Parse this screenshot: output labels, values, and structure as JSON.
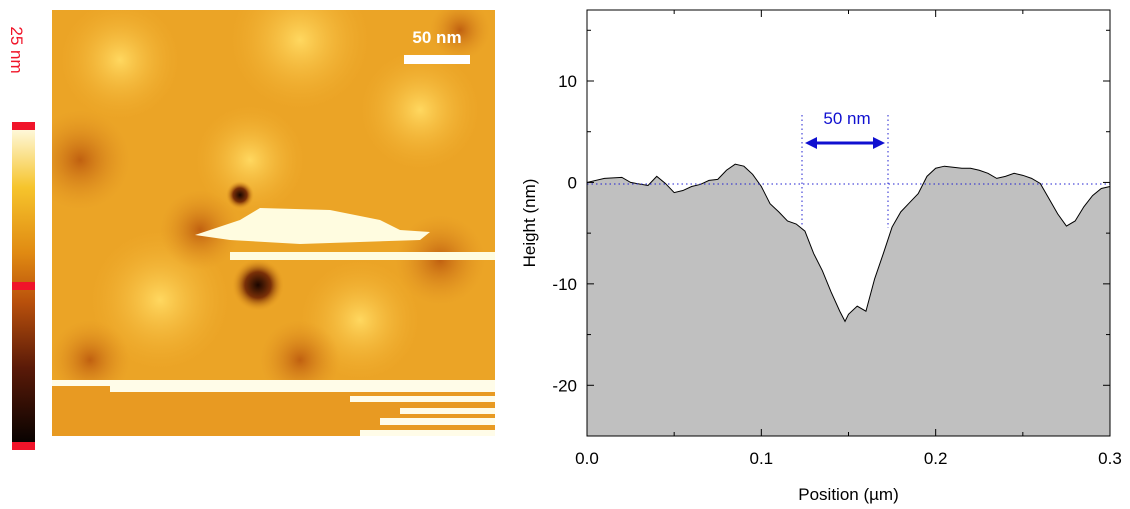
{
  "image": {
    "colorbar_label": "25 nm",
    "scale_bar_label": "50 nm"
  },
  "chart_data": {
    "type": "area",
    "xlabel": "Position (µm)",
    "ylabel": "Height (nm)",
    "annotation": "50 nm",
    "xlim": [
      0,
      0.3
    ],
    "ylim": [
      -25,
      17
    ],
    "xticks": [
      {
        "value": 0,
        "label": "0.0"
      },
      0.1,
      0.2,
      0.3
    ],
    "yticks": [
      -20,
      -10,
      0,
      10
    ],
    "x": [
      0,
      0.01,
      0.02,
      0.025,
      0.035,
      0.04,
      0.045,
      0.05,
      0.055,
      0.06,
      0.065,
      0.07,
      0.075,
      0.08,
      0.085,
      0.09,
      0.095,
      0.1,
      0.105,
      0.11,
      0.115,
      0.12,
      0.125,
      0.13,
      0.135,
      0.14,
      0.145,
      0.148,
      0.15,
      0.155,
      0.16,
      0.165,
      0.17,
      0.175,
      0.18,
      0.185,
      0.19,
      0.195,
      0.2,
      0.205,
      0.21,
      0.215,
      0.22,
      0.225,
      0.23,
      0.235,
      0.24,
      0.245,
      0.25,
      0.255,
      0.26,
      0.265,
      0.27,
      0.275,
      0.28,
      0.285,
      0.29,
      0.295,
      0.3
    ],
    "series": [
      {
        "color": "#c0c0c0",
        "values": [
          0,
          0.4,
          0.5,
          0,
          -0.3,
          0.6,
          -0.1,
          -1.0,
          -0.8,
          -0.4,
          -0.2,
          0.2,
          0.3,
          1.2,
          1.8,
          1.6,
          0.8,
          -0.4,
          -2.1,
          -2.9,
          -3.8,
          -4.1,
          -4.8,
          -7.0,
          -8.7,
          -10.8,
          -12.7,
          -13.7,
          -13.0,
          -12.2,
          -12.7,
          -9.5,
          -7.0,
          -4.4,
          -2.9,
          -2.0,
          -1.1,
          0.6,
          1.4,
          1.6,
          1.5,
          1.4,
          1.4,
          1.2,
          0.9,
          0.4,
          0.6,
          0.9,
          0.7,
          0.4,
          -0.1,
          -1.6,
          -3.1,
          -4.3,
          -3.8,
          -2.4,
          -1.3,
          -0.6,
          -0.4
        ]
      }
    ]
  }
}
